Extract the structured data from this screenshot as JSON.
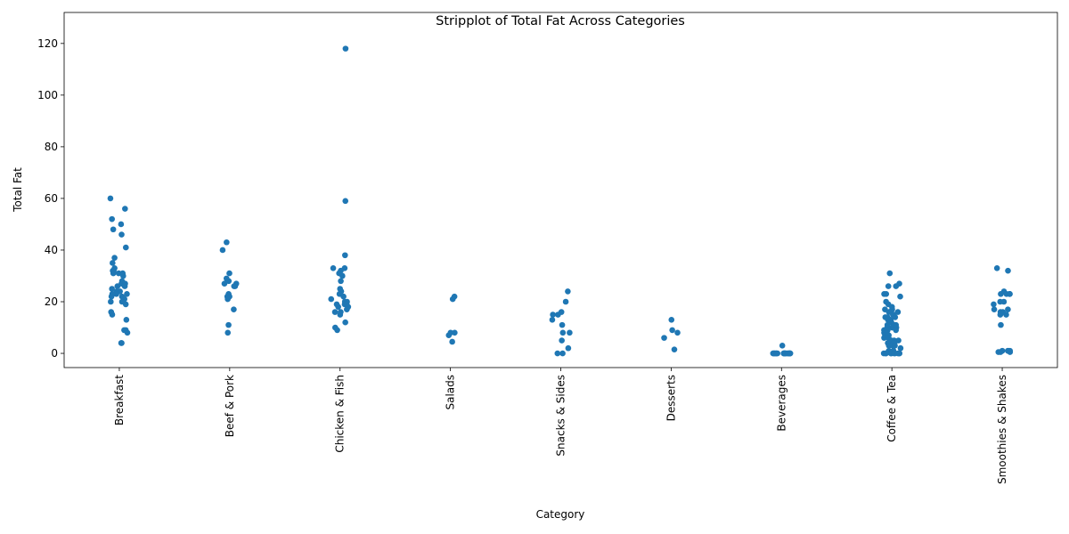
{
  "chart_data": {
    "type": "strip",
    "title": "Stripplot of Total Fat Across Categories",
    "x_label": "Category",
    "y_label": "Total Fat",
    "color": "#1f77b4",
    "categories": [
      "Breakfast",
      "Beef & Pork",
      "Chicken & Fish",
      "Salads",
      "Snacks & Sides",
      "Desserts",
      "Beverages",
      "Coffee & Tea",
      "Smoothies & Shakes"
    ],
    "values": [
      [
        60,
        56,
        52,
        50,
        48,
        46,
        41,
        37,
        35,
        33,
        32,
        32,
        31,
        31,
        31,
        30,
        28,
        27,
        27,
        26,
        26,
        25,
        24,
        24,
        23,
        23,
        23,
        22,
        22,
        21,
        20,
        20,
        19,
        16,
        15,
        13,
        9,
        9,
        8,
        4,
        4
      ],
      [
        43,
        40,
        31,
        29,
        28,
        27,
        27,
        26,
        26,
        23,
        22,
        22,
        21,
        17,
        11,
        8
      ],
      [
        118,
        59,
        38,
        33,
        33,
        32,
        31,
        30,
        28,
        25,
        24,
        23,
        22,
        21,
        20,
        20,
        19,
        19,
        19,
        18,
        18,
        17,
        16,
        16,
        15,
        12,
        10,
        9
      ],
      [
        22,
        21,
        8,
        8,
        7,
        4.5
      ],
      [
        24,
        20,
        16,
        15,
        15,
        13,
        11,
        8,
        8,
        5,
        2,
        0,
        0
      ],
      [
        13,
        9,
        8,
        6,
        1.5
      ],
      [
        3,
        0,
        0,
        0,
        0,
        0,
        0,
        0,
        0,
        0,
        0,
        0,
        0,
        0,
        0,
        0,
        0,
        0,
        0,
        0,
        0
      ],
      [
        31,
        27,
        26,
        26,
        23,
        23,
        22,
        20,
        19,
        18,
        17,
        17,
        16,
        16,
        15,
        15,
        14,
        14,
        14,
        13,
        13,
        12,
        11,
        11,
        11,
        10,
        10,
        10,
        9,
        9,
        9,
        8,
        8,
        7,
        7,
        7,
        6,
        6,
        5,
        5,
        5,
        4,
        4,
        4,
        4,
        3,
        3,
        3,
        3,
        2,
        1,
        1,
        0,
        0,
        0,
        0,
        0,
        0,
        0,
        0,
        0,
        0
      ],
      [
        33,
        32,
        24,
        23,
        23,
        23,
        23,
        23,
        20,
        20,
        19,
        17,
        17,
        16,
        16,
        15,
        15,
        11,
        1,
        1,
        1,
        1,
        0.5,
        0.5,
        0.5
      ]
    ],
    "ylim": [
      -5.5,
      132
    ],
    "yticks": [
      0,
      20,
      40,
      60,
      80,
      100,
      120
    ],
    "grid": false
  }
}
